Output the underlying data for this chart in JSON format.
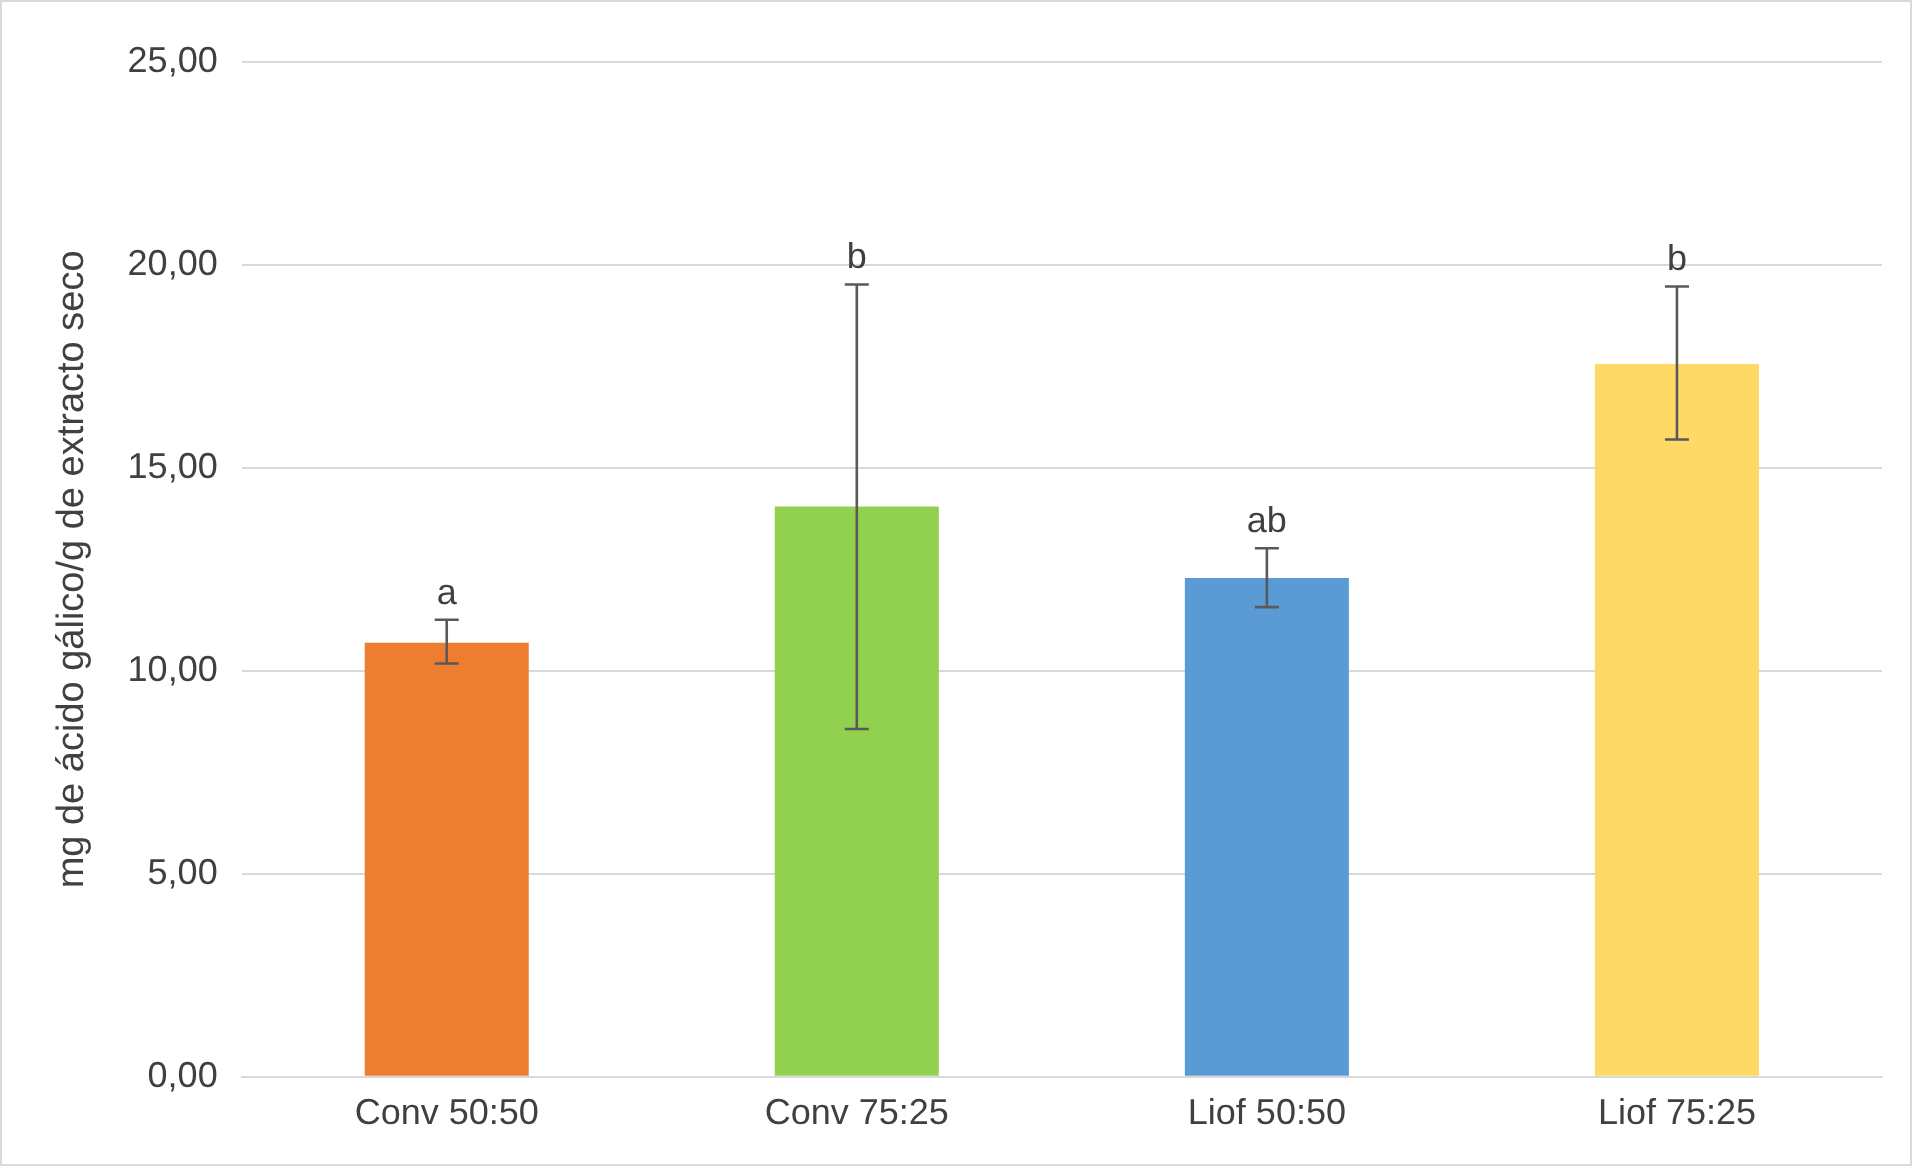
{
  "chart_data": {
    "type": "bar",
    "ylabel": "mg de ácido gálico/g de extracto seco",
    "categories": [
      "Conv 50:50",
      "Conv 75:25",
      "Liof 50:50",
      "Liof 75:25"
    ],
    "values": [
      10.69,
      14.05,
      12.29,
      17.56
    ],
    "colors": [
      "#ed7d31",
      "#92d050",
      "#5b9bd5",
      "#ffd966"
    ],
    "errors": [
      [
        10.18,
        11.26
      ],
      [
        8.57,
        19.52
      ],
      [
        11.57,
        13.02
      ],
      [
        15.7,
        19.47
      ]
    ],
    "ylim": [
      0,
      25
    ],
    "yticks": [
      {
        "value": 0,
        "label": "0,00"
      },
      {
        "value": 5,
        "label": "5,00"
      },
      {
        "value": 10,
        "label": "10,00"
      },
      {
        "value": 15,
        "label": "15,00"
      },
      {
        "value": 20,
        "label": "20,00"
      },
      {
        "value": 25,
        "label": "25,00"
      }
    ],
    "grid": "y",
    "legend": false,
    "annotations": [
      {
        "text": "a",
        "x": "Conv 50:50",
        "y": 11.26
      },
      {
        "text": "b",
        "x": "Conv 75:25",
        "y": 19.52
      },
      {
        "text": "ab",
        "x": "Liof 50:50",
        "y": 13.02
      },
      {
        "text": "b",
        "x": "Liof 75:25",
        "y": 19.47
      }
    ]
  }
}
